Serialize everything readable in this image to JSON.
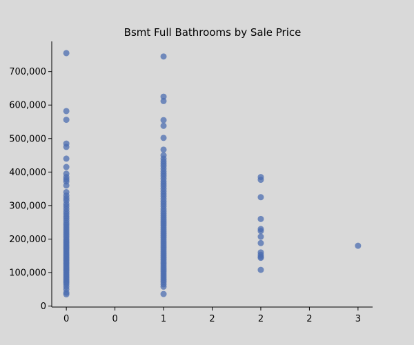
{
  "chart_data": {
    "type": "scatter",
    "title": "Bsmt Full Bathrooms by Sale Price",
    "xlabel": "",
    "ylabel": "",
    "xlim": [
      -0.15,
      3.15
    ],
    "ylim": [
      -3000,
      790000
    ],
    "x_ticks": [
      0,
      0.5,
      1,
      1.5,
      2,
      2.5,
      3
    ],
    "x_tick_labels": [
      "0",
      "0",
      "1",
      "2",
      "2",
      "2",
      "3"
    ],
    "y_ticks": [
      0,
      100000,
      200000,
      300000,
      400000,
      500000,
      600000,
      700000
    ],
    "y_tick_labels": [
      "0",
      "100,000",
      "200,000",
      "300,000",
      "400,000",
      "500,000",
      "600,000",
      "700,000"
    ],
    "grid": false,
    "marker_color": "#4c6eb0",
    "marker_opacity": 0.75,
    "background": "#d9d9d9",
    "series": [
      {
        "groups": [
          {
            "x": 0,
            "y": [
              755000,
              582000,
              556000,
              485000,
              475000,
              440000,
              415000,
              395000,
              385000,
              378000,
              372000,
              360000,
              340000,
              330000,
              322000,
              315000,
              305000,
              298000,
              290000,
              282000,
              275000,
              268000,
              262000,
              255000,
              248000,
              242000,
              236000,
              230000,
              224000,
              218000,
              212000,
              206000,
              200000,
              195000,
              190000,
              185000,
              180000,
              175000,
              170000,
              165000,
              160000,
              155000,
              150000,
              145000,
              140000,
              135000,
              130000,
              125000,
              120000,
              115000,
              110000,
              105000,
              100000,
              95000,
              90000,
              85000,
              80000,
              75000,
              70000,
              65000,
              58000,
              50000,
              40000,
              35000
            ]
          },
          {
            "x": 1,
            "y": [
              745000,
              625000,
              612000,
              555000,
              538000,
              502000,
              467000,
              450000,
              440000,
              432000,
              425000,
              418000,
              410000,
              402000,
              395000,
              388000,
              380000,
              372000,
              365000,
              358000,
              350000,
              342000,
              335000,
              328000,
              320000,
              312000,
              305000,
              298000,
              290000,
              283000,
              276000,
              270000,
              264000,
              258000,
              252000,
              246000,
              240000,
              234000,
              228000,
              222000,
              216000,
              210000,
              204000,
              198000,
              192000,
              186000,
              180000,
              174000,
              168000,
              162000,
              156000,
              150000,
              144000,
              138000,
              132000,
              126000,
              120000,
              114000,
              108000,
              102000,
              96000,
              90000,
              84000,
              78000,
              72000,
              65000,
              58000,
              36000
            ]
          },
          {
            "x": 2,
            "y": [
              385000,
              377000,
              325000,
              260000,
              230000,
              224000,
              207000,
              188000,
              160000,
              153000,
              147000,
              144000,
              108000
            ]
          },
          {
            "x": 3,
            "y": [
              180000
            ]
          }
        ]
      }
    ]
  }
}
